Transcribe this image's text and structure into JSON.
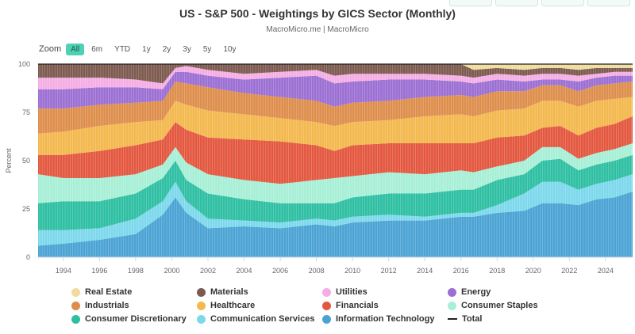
{
  "title": "US - S&P 500 - Weightings by GICS Sector (Monthly)",
  "source": "MacroMicro.me | MacroMicro",
  "zoom": {
    "label": "Zoom",
    "options": [
      "All",
      "6m",
      "YTD",
      "1y",
      "2y",
      "3y",
      "5y",
      "10y"
    ],
    "active": "All"
  },
  "chart_data": {
    "type": "area",
    "stacked": true,
    "title": "US - S&P 500 - Weightings by GICS Sector (Monthly)",
    "xlabel": "",
    "ylabel": "Percent",
    "ylim": [
      0,
      100
    ],
    "yticks": [
      0,
      25,
      50,
      75,
      100
    ],
    "xticks": [
      1994,
      1996,
      1998,
      2000,
      2002,
      2004,
      2006,
      2008,
      2010,
      2012,
      2014,
      2016,
      2018,
      2020,
      2022,
      2024
    ],
    "xlim": [
      1992.6,
      2025.5
    ],
    "grid": true,
    "legend_position": "bottom",
    "x": [
      1992.6,
      1994,
      1996,
      1998,
      1999.5,
      2000.2,
      2000.8,
      2002,
      2004,
      2006,
      2008,
      2009,
      2010,
      2012,
      2014,
      2016,
      2016.7,
      2018,
      2019.5,
      2020.5,
      2021.5,
      2022.5,
      2023.5,
      2024.5,
      2025.5
    ],
    "stack_order": [
      "Information Technology",
      "Communication Services",
      "Consumer Discretionary",
      "Consumer Staples",
      "Financials",
      "Healthcare",
      "Industrials",
      "Energy",
      "Utilities",
      "Materials",
      "Real Estate"
    ],
    "series": [
      {
        "name": "Information Technology",
        "color": "#4ba3d4",
        "values": [
          6,
          7,
          9,
          12,
          22,
          31,
          23,
          15,
          16,
          15,
          17,
          16,
          18,
          19,
          19,
          21,
          21,
          23,
          24,
          28,
          28,
          27,
          30,
          31,
          34
        ]
      },
      {
        "name": "Communication Services",
        "color": "#7dd8ec",
        "values": [
          8,
          7,
          6,
          8,
          7,
          8,
          6,
          5,
          3,
          3,
          3,
          3,
          3,
          3,
          2,
          2,
          2,
          4,
          9,
          11,
          11,
          8,
          8,
          9,
          9
        ]
      },
      {
        "name": "Consumer Discretionary",
        "color": "#2ebfa2",
        "values": [
          14,
          15,
          14,
          13,
          12,
          11,
          11,
          13,
          11,
          10,
          8,
          9,
          10,
          11,
          12,
          12,
          12,
          13,
          10,
          11,
          12,
          10,
          10,
          10,
          10
        ]
      },
      {
        "name": "Consumer Staples",
        "color": "#a7efd6",
        "values": [
          15,
          12,
          12,
          10,
          7,
          7,
          9,
          10,
          10,
          10,
          12,
          13,
          11,
          11,
          10,
          10,
          9,
          7,
          7,
          7,
          6,
          6,
          6,
          6,
          6
        ]
      },
      {
        "name": "Financials",
        "color": "#e4573f",
        "values": [
          10,
          12,
          14,
          15,
          13,
          13,
          17,
          19,
          21,
          22,
          18,
          14,
          16,
          15,
          16,
          14,
          15,
          15,
          13,
          10,
          11,
          12,
          13,
          13,
          14
        ]
      },
      {
        "name": "Healthcare",
        "color": "#f3b84e",
        "values": [
          11,
          12,
          13,
          12,
          10,
          11,
          13,
          14,
          13,
          12,
          12,
          13,
          12,
          12,
          14,
          15,
          14,
          14,
          14,
          14,
          13,
          15,
          14,
          13,
          10
        ]
      },
      {
        "name": "Industrials",
        "color": "#de8e4c",
        "values": [
          13,
          12,
          11,
          10,
          10,
          10,
          11,
          12,
          11,
          11,
          11,
          10,
          10,
          10,
          10,
          10,
          10,
          10,
          9,
          8,
          8,
          8,
          8,
          8,
          8
        ]
      },
      {
        "name": "Energy",
        "color": "#9b6fd3",
        "values": [
          10,
          10,
          9,
          8,
          6,
          5,
          6,
          6,
          7,
          10,
          13,
          12,
          11,
          11,
          9,
          7,
          7,
          6,
          5,
          3,
          3,
          5,
          4,
          4,
          3
        ]
      },
      {
        "name": "Utilities",
        "color": "#f4aee4",
        "values": [
          6,
          6,
          5,
          4,
          3,
          2,
          3,
          3,
          3,
          3,
          3,
          4,
          4,
          3,
          3,
          3,
          3,
          3,
          3,
          3,
          3,
          3,
          2,
          2,
          2
        ]
      },
      {
        "name": "Materials",
        "color": "#7d5a4f",
        "values": [
          7,
          7,
          7,
          8,
          10,
          2,
          1,
          3,
          5,
          4,
          3,
          6,
          5,
          5,
          5,
          6,
          4,
          3,
          3,
          3,
          3,
          3,
          3,
          2,
          2
        ]
      },
      {
        "name": "Real Estate",
        "color": "#f0dc9c",
        "values": [
          0,
          0,
          0,
          0,
          0,
          0,
          0,
          0,
          0,
          0,
          0,
          0,
          0,
          0,
          0,
          0,
          3,
          2,
          3,
          2,
          2,
          3,
          2,
          2,
          2
        ]
      }
    ],
    "legend": [
      {
        "name": "Real Estate",
        "color": "#f0dc9c",
        "marker": "dot"
      },
      {
        "name": "Materials",
        "color": "#7d5a4f",
        "marker": "dot"
      },
      {
        "name": "Utilities",
        "color": "#f4aee4",
        "marker": "dot"
      },
      {
        "name": "Energy",
        "color": "#9b6fd3",
        "marker": "dot"
      },
      {
        "name": "Industrials",
        "color": "#de8e4c",
        "marker": "dot"
      },
      {
        "name": "Healthcare",
        "color": "#f3b84e",
        "marker": "dot"
      },
      {
        "name": "Financials",
        "color": "#e4573f",
        "marker": "dot"
      },
      {
        "name": "Consumer Staples",
        "color": "#a7efd6",
        "marker": "dot"
      },
      {
        "name": "Consumer Discretionary",
        "color": "#2ebfa2",
        "marker": "dot"
      },
      {
        "name": "Communication Services",
        "color": "#7dd8ec",
        "marker": "dot"
      },
      {
        "name": "Information Technology",
        "color": "#4ba3d4",
        "marker": "dot"
      },
      {
        "name": "Total",
        "color": "#222222",
        "marker": "line"
      }
    ]
  }
}
